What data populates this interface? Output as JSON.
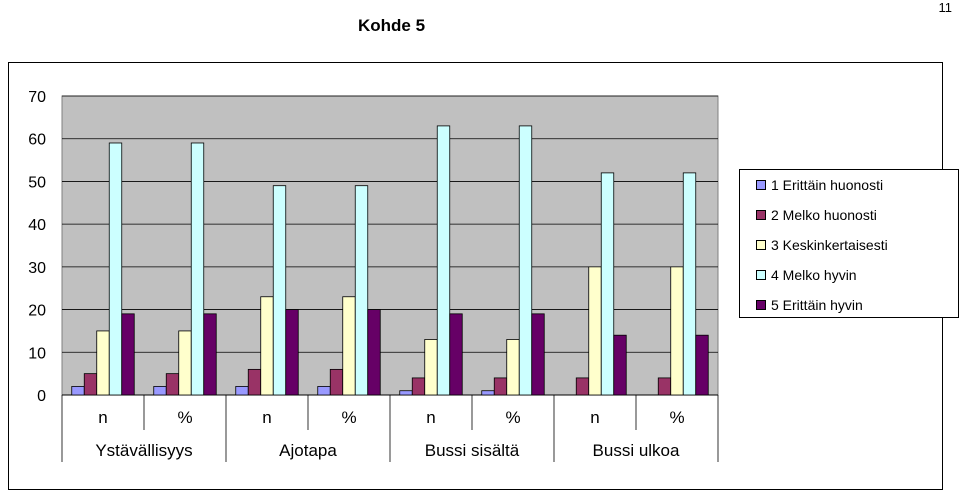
{
  "page_number": "11",
  "colors": {
    "plot_bg": "#C0C0C0",
    "series": [
      "#9999FF",
      "#993366",
      "#FFFFCC",
      "#CCFFFF",
      "#660066"
    ]
  },
  "chart_data": {
    "type": "bar",
    "title": "Kohde 5",
    "categories": [
      "n",
      "%",
      "n",
      "%",
      "n",
      "%",
      "n",
      "%"
    ],
    "groups": [
      "Ystävällisyys",
      "Ajotapa",
      "Bussi sisältä",
      "Bussi ulkoa"
    ],
    "ylim": [
      0,
      70
    ],
    "yticks": [
      0,
      10,
      20,
      30,
      40,
      50,
      60,
      70
    ],
    "grid": true,
    "legend_position": "right",
    "series": [
      {
        "name": "1 Erittäin huonosti",
        "values": [
          2,
          2,
          2,
          2,
          1,
          1,
          0,
          0
        ]
      },
      {
        "name": "2 Melko huonosti",
        "values": [
          5,
          5,
          6,
          6,
          4,
          4,
          4,
          4
        ]
      },
      {
        "name": "3 Keskinkertaisesti",
        "values": [
          15,
          15,
          23,
          23,
          13,
          13,
          30,
          30
        ]
      },
      {
        "name": "4 Melko hyvin",
        "values": [
          59,
          59,
          49,
          49,
          63,
          63,
          52,
          52
        ]
      },
      {
        "name": "5 Erittäin hyvin",
        "values": [
          19,
          19,
          20,
          20,
          19,
          19,
          14,
          14
        ]
      }
    ]
  }
}
